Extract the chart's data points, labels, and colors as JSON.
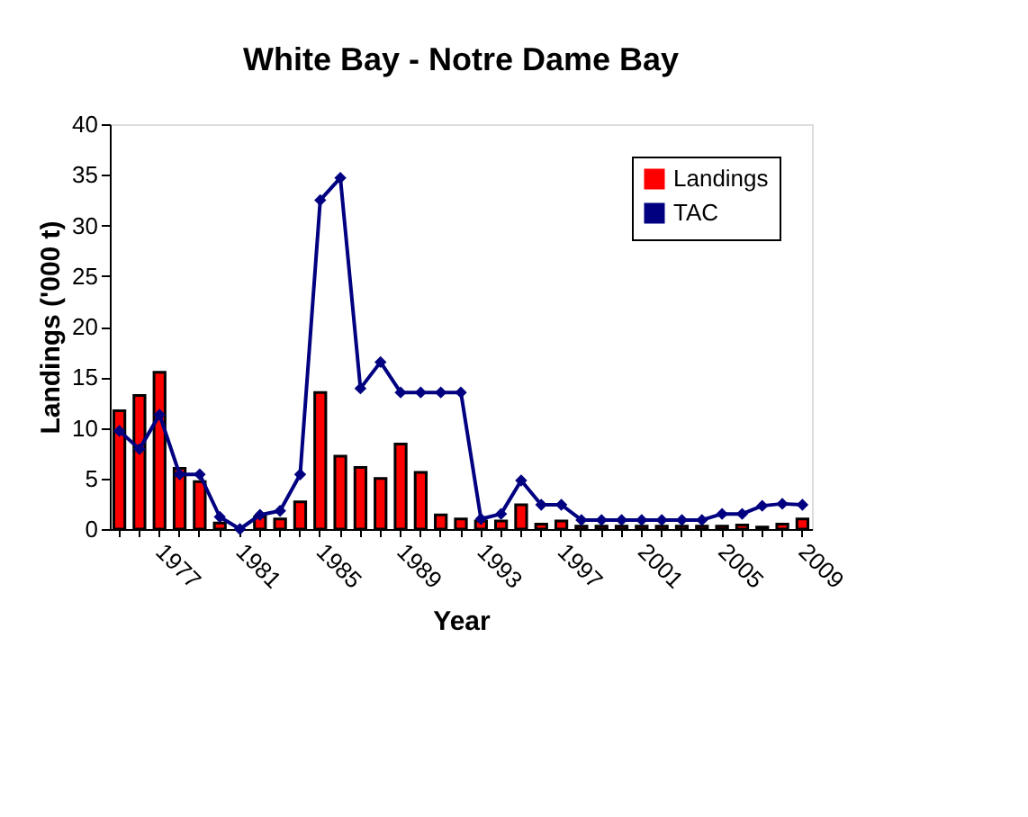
{
  "chart_data": {
    "type": "bar",
    "title": "White Bay - Notre Dame Bay",
    "xlabel": "Year",
    "ylabel": "Landings ('000 t)",
    "categories": [
      null,
      null,
      "1977",
      null,
      null,
      null,
      "1981",
      null,
      null,
      null,
      "1985",
      null,
      null,
      null,
      "1989",
      null,
      null,
      null,
      "1993",
      null,
      null,
      null,
      "1997",
      null,
      null,
      null,
      "2001",
      null,
      null,
      null,
      "2005",
      null,
      null,
      null,
      "2009"
    ],
    "series": [
      {
        "name": "Landings",
        "color": "#ff0000",
        "values": [
          11.7,
          13.2,
          15.5,
          6.0,
          4.7,
          0.6,
          null,
          1.2,
          1.0,
          2.7,
          13.5,
          7.2,
          6.1,
          5.0,
          8.4,
          5.6,
          1.4,
          1.0,
          0.8,
          0.8,
          2.4,
          0.5,
          0.8,
          0.3,
          0.3,
          0.3,
          0.3,
          0.3,
          0.3,
          0.3,
          0.3,
          0.4,
          0.2,
          0.5,
          1.0
        ]
      },
      {
        "name": "TAC",
        "type": "line",
        "color": "#000080",
        "marker": "diamond",
        "values": [
          9.7,
          7.9,
          11.3,
          5.4,
          5.4,
          1.2,
          0,
          1.4,
          1.8,
          5.4,
          32.5,
          34.7,
          13.9,
          16.5,
          13.5,
          13.5,
          13.5,
          13.5,
          1.0,
          1.5,
          4.8,
          2.4,
          2.4,
          0.9,
          0.9,
          0.9,
          0.9,
          0.9,
          0.9,
          0.9,
          1.5,
          1.5,
          2.3,
          2.5,
          2.4
        ]
      }
    ],
    "ylim": [
      0,
      40
    ],
    "yticks": [
      0,
      5,
      10,
      15,
      20,
      25,
      30,
      35,
      40
    ],
    "grid": false,
    "legend": "top right"
  }
}
